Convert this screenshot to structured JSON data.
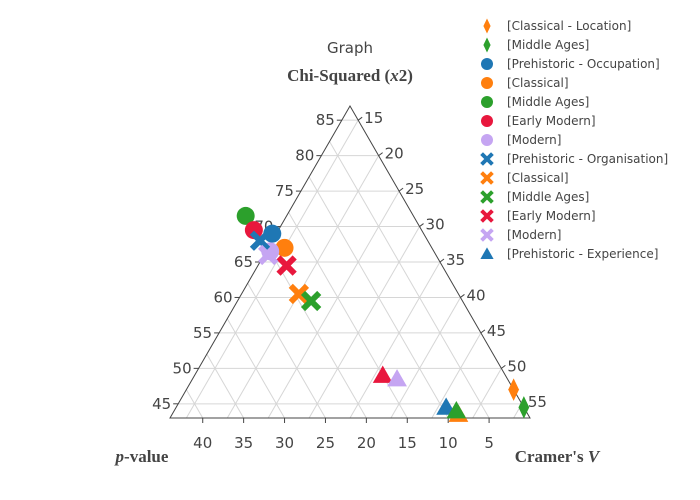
{
  "title": "Graph",
  "chart_data": {
    "type": "ternary-scatter",
    "title": "Graph",
    "axes": {
      "a": {
        "label": "Chi-Squared (x2)",
        "label_prefix": "Chi-Squared (",
        "label_var": "x",
        "label_suffix": "2)",
        "min": 43,
        "ticks": [
          45,
          50,
          55,
          60,
          65,
          70,
          75,
          80,
          85
        ]
      },
      "b": {
        "label": "p-value",
        "label_var": "p",
        "label_suffix": "-value",
        "ticks": [
          5,
          10,
          15,
          20,
          25,
          30,
          35,
          40
        ],
        "tick_labels": [
          "5",
          "10",
          "15",
          "20",
          "25",
          "30",
          "35",
          "40"
        ]
      },
      "c": {
        "label": "Cramer's V",
        "label_prefix": "Cramer's ",
        "label_var": "V",
        "min": 13,
        "ticks": [
          15,
          20,
          25,
          30,
          35,
          40,
          45,
          50,
          55
        ]
      }
    },
    "series": [
      {
        "name": "[Classical - Location]",
        "symbol": "diamond-tall",
        "color": "#ff7f0e",
        "points": [
          {
            "a": 47.0,
            "b": 0.0,
            "c": 53.0
          }
        ]
      },
      {
        "name": "[Middle Ages]",
        "symbol": "diamond-tall",
        "color": "#2ca02c",
        "points": [
          {
            "a": 44.5,
            "b": 0.0,
            "c": 55.5
          }
        ]
      },
      {
        "name": "[Prehistoric - Occupation]",
        "symbol": "circle",
        "color": "#1f77b4",
        "points": [
          {
            "a": 69.0,
            "b": 18.5,
            "c": 12.5
          }
        ]
      },
      {
        "name": "[Classical]",
        "symbol": "circle",
        "color": "#ff7f0e",
        "points": [
          {
            "a": 67.0,
            "b": 18.0,
            "c": 15.0
          }
        ]
      },
      {
        "name": "[Middle Ages]",
        "symbol": "circle",
        "color": "#2ca02c",
        "points": [
          {
            "a": 71.5,
            "b": 20.5,
            "c": 8.0
          }
        ]
      },
      {
        "name": "[Early Modern]",
        "symbol": "circle",
        "color": "#e8173d",
        "points": [
          {
            "a": 69.5,
            "b": 20.5,
            "c": 10.0
          }
        ]
      },
      {
        "name": "[Modern]",
        "symbol": "circle",
        "color": "#c5a5f2",
        "points": [
          {
            "a": 66.5,
            "b": 20.0,
            "c": 13.5
          }
        ]
      },
      {
        "name": "[Prehistoric - Organisation]",
        "symbol": "x",
        "color": "#1f77b4",
        "points": [
          {
            "a": 68.0,
            "b": 20.5,
            "c": 11.5
          }
        ]
      },
      {
        "name": "[Classical]",
        "symbol": "x",
        "color": "#ff7f0e",
        "points": [
          {
            "a": 60.5,
            "b": 19.5,
            "c": 20.0
          }
        ]
      },
      {
        "name": "[Middle Ages]",
        "symbol": "x",
        "color": "#2ca02c",
        "points": [
          {
            "a": 59.5,
            "b": 18.5,
            "c": 22.0
          }
        ]
      },
      {
        "name": "[Early Modern]",
        "symbol": "x",
        "color": "#e8173d",
        "points": [
          {
            "a": 64.5,
            "b": 19.0,
            "c": 16.5
          }
        ]
      },
      {
        "name": "[Modern]",
        "symbol": "x",
        "color": "#c5a5f2",
        "points": [
          {
            "a": 66.0,
            "b": 20.5,
            "c": 13.5
          }
        ]
      },
      {
        "name": "[Prehistoric - Experience]",
        "symbol": "triangle-up",
        "color": "#1f77b4",
        "points": [
          {
            "a": 44.5,
            "b": 9.5,
            "c": 46.0
          }
        ]
      }
    ],
    "extra_points": [
      {
        "symbol": "triangle-up",
        "color": "#e8173d",
        "a": 49.0,
        "b": 15.0,
        "c": 36.0
      },
      {
        "symbol": "triangle-up",
        "color": "#c5a5f2",
        "a": 48.5,
        "b": 13.5,
        "c": 38.0
      },
      {
        "symbol": "triangle-up",
        "color": "#ff7f0e",
        "a": 43.5,
        "b": 8.5,
        "c": 48.0
      },
      {
        "symbol": "triangle-up",
        "color": "#2ca02c",
        "a": 44.0,
        "b": 8.5,
        "c": 47.5
      }
    ],
    "legend": "top-right",
    "grid": true
  }
}
